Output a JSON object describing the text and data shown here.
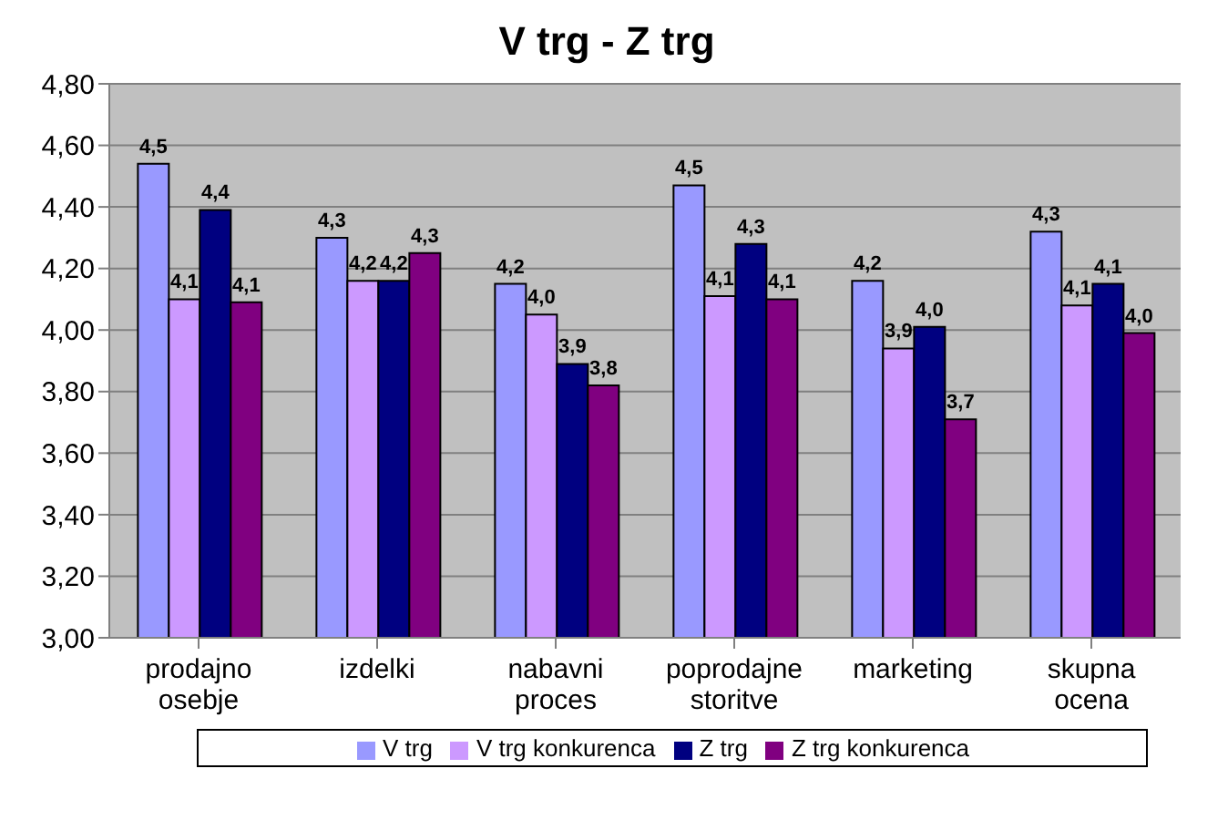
{
  "chart_data": {
    "type": "bar",
    "title": "V trg - Z trg",
    "categories": [
      "prodajno osebje",
      "izdelki",
      "nabavni proces",
      "poprodajne storitve",
      "marketing",
      "skupna ocena"
    ],
    "series": [
      {
        "name": "V trg",
        "color": "#9999ff",
        "values": [
          4.54,
          4.3,
          4.15,
          4.47,
          4.16,
          4.32
        ],
        "value_labels": [
          "4,5",
          "4,3",
          "4,2",
          "4,5",
          "4,2",
          "4,3"
        ]
      },
      {
        "name": "V trg konkurenca",
        "color": "#cc99ff",
        "values": [
          4.1,
          4.16,
          4.05,
          4.11,
          3.94,
          4.08
        ],
        "value_labels": [
          "4,1",
          "4,2",
          "4,0",
          "4,1",
          "3,9",
          "4,1"
        ]
      },
      {
        "name": "Z trg",
        "color": "#000080",
        "values": [
          4.39,
          4.16,
          3.89,
          4.28,
          4.01,
          4.15
        ],
        "value_labels": [
          "4,4",
          "4,2",
          "3,9",
          "4,3",
          "4,0",
          "4,1"
        ]
      },
      {
        "name": "Z trg konkurenca",
        "color": "#800080",
        "values": [
          4.09,
          4.25,
          3.82,
          4.1,
          3.71,
          3.99
        ],
        "value_labels": [
          "4,1",
          "4,3",
          "3,8",
          "4,1",
          "3,7",
          "4,0"
        ]
      }
    ],
    "ylim": [
      3.0,
      4.8
    ],
    "yticks": [
      {
        "value": 3.0,
        "label": "3,00"
      },
      {
        "value": 3.2,
        "label": "3,20"
      },
      {
        "value": 3.4,
        "label": "3,40"
      },
      {
        "value": 3.6,
        "label": "3,60"
      },
      {
        "value": 3.8,
        "label": "3,80"
      },
      {
        "value": 4.0,
        "label": "4,00"
      },
      {
        "value": 4.2,
        "label": "4,20"
      },
      {
        "value": 4.4,
        "label": "4,40"
      },
      {
        "value": 4.6,
        "label": "4,60"
      },
      {
        "value": 4.8,
        "label": "4,80"
      }
    ],
    "grid": "y",
    "legend": "bottom"
  }
}
